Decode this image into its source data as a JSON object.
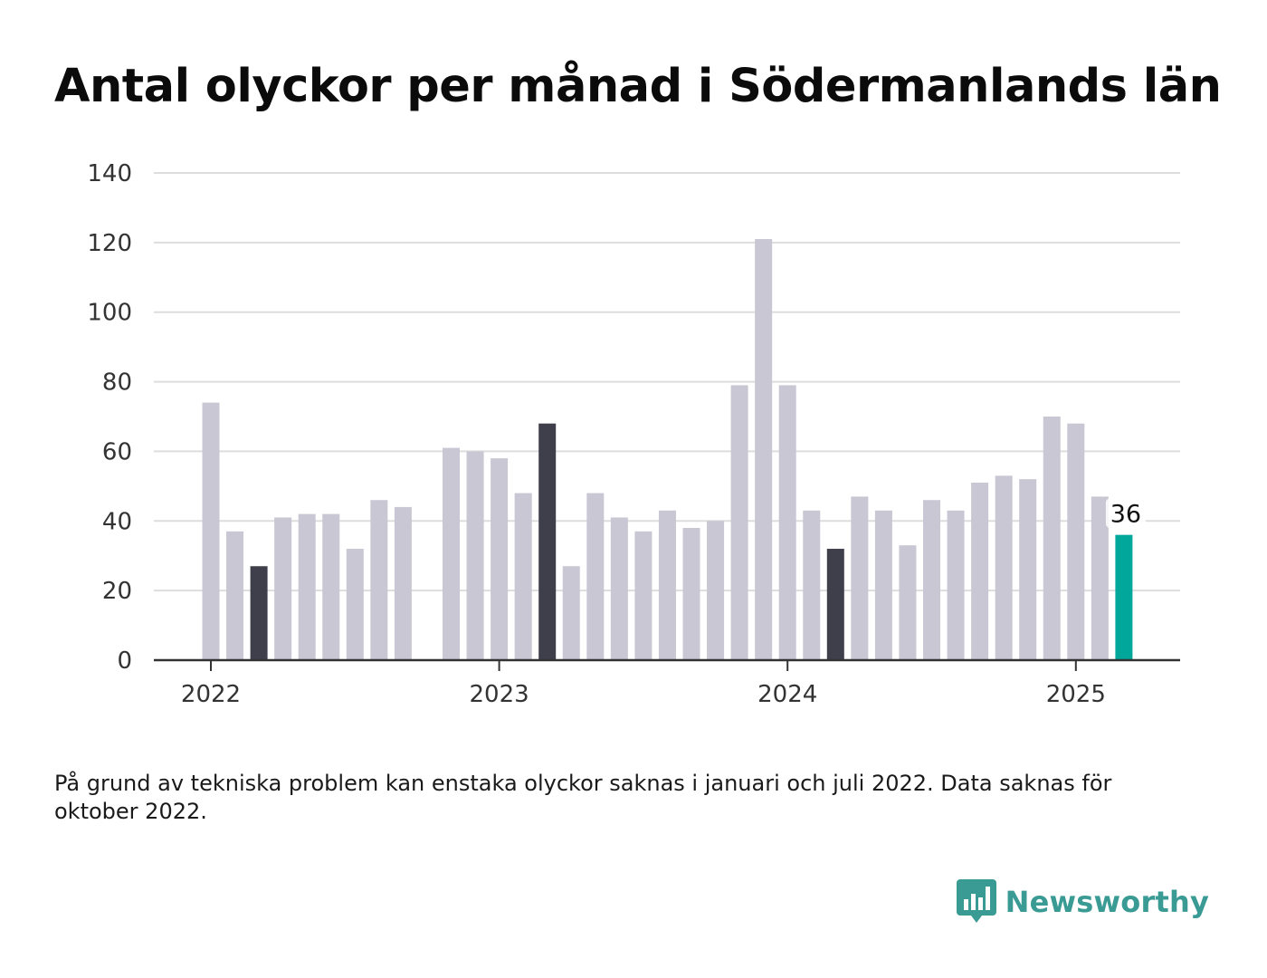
{
  "title": "Antal olyckor per månad i Södermanlands län",
  "footnote": "På grund av tekniska problem kan enstaka olyckor saknas i januari och juli 2022. Data saknas för oktober 2022.",
  "brand": {
    "name": "Newsworthy",
    "icon": "newsworthy-logo-icon",
    "color": "#3a9a94"
  },
  "colors": {
    "bar": "#c8c7d3",
    "bar_dark": "#3f3e4b",
    "bar_highlight": "#00a79a",
    "grid": "#dddddd",
    "axis": "#333333"
  },
  "chart_data": {
    "type": "bar",
    "title": "Antal olyckor per månad i Södermanlands län",
    "xlabel": "",
    "ylabel": "",
    "ylim": [
      0,
      140
    ],
    "yticks": [
      0,
      20,
      40,
      60,
      80,
      100,
      120,
      140
    ],
    "xticks": [
      {
        "label": "2022",
        "month": "2022-01"
      },
      {
        "label": "2023",
        "month": "2023-01"
      },
      {
        "label": "2024",
        "month": "2024-01"
      },
      {
        "label": "2025",
        "month": "2025-01"
      }
    ],
    "grid": true,
    "categories": [
      "2022-01",
      "2022-02",
      "2022-03",
      "2022-04",
      "2022-05",
      "2022-06",
      "2022-07",
      "2022-08",
      "2022-09",
      "2022-10",
      "2022-11",
      "2022-12",
      "2023-01",
      "2023-02",
      "2023-03",
      "2023-04",
      "2023-05",
      "2023-06",
      "2023-07",
      "2023-08",
      "2023-09",
      "2023-10",
      "2023-11",
      "2023-12",
      "2024-01",
      "2024-02",
      "2024-03",
      "2024-04",
      "2024-05",
      "2024-06",
      "2024-07",
      "2024-08",
      "2024-09",
      "2024-10",
      "2024-11",
      "2024-12",
      "2025-01",
      "2025-02",
      "2025-03"
    ],
    "values": [
      74,
      37,
      27,
      41,
      42,
      42,
      32,
      46,
      44,
      null,
      61,
      60,
      58,
      48,
      68,
      27,
      48,
      41,
      37,
      43,
      38,
      40,
      79,
      121,
      79,
      43,
      32,
      47,
      43,
      33,
      46,
      43,
      51,
      53,
      52,
      70,
      68,
      47,
      36
    ],
    "dark_bars": [
      "2022-03",
      "2023-03",
      "2024-03"
    ],
    "highlight_bar": "2025-03",
    "annotations": [
      {
        "category": "2025-03",
        "text": "36"
      }
    ]
  }
}
